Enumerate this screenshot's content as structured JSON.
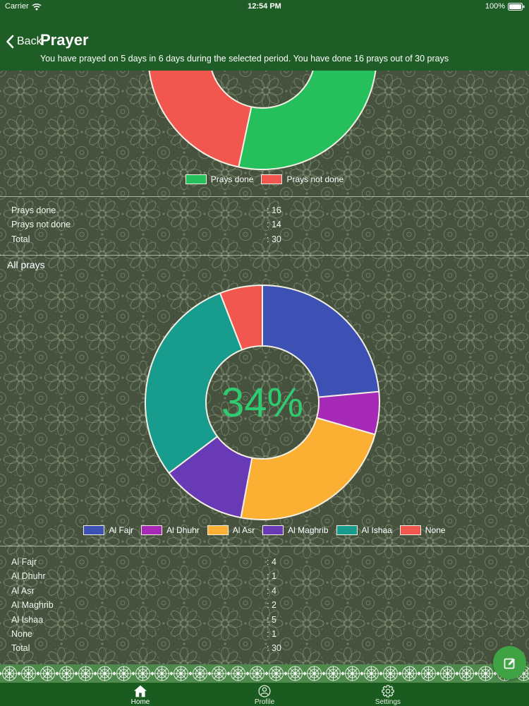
{
  "status_bar": {
    "carrier": "Carrier",
    "time": "12:54 PM",
    "battery": "100%"
  },
  "nav": {
    "back_label": "Back",
    "title": "Prayer",
    "subtitle": "You have prayed on 5 days in 6 days during the selected period. You have done 16 prays out of 30 prays"
  },
  "colors": {
    "header_green": "#1e5d25",
    "tabbar_green": "#1a5b20",
    "band_green": "#4e8a4c",
    "fab_green": "#3fa344",
    "slice_stroke": "#f3efe2",
    "center_label_green": "#2fcb70"
  },
  "chart_data": [
    {
      "type": "pie",
      "name": "prays-summary-donut",
      "donut": true,
      "start": "top",
      "direction": "clockwise",
      "categories": [
        "Prays done",
        "Prays not done"
      ],
      "values": [
        16,
        14
      ],
      "colors": [
        "#25c05c",
        "#f1574f"
      ],
      "legend_position": "bottom"
    },
    {
      "type": "pie",
      "name": "all-prays-donut",
      "donut": true,
      "start": "top",
      "direction": "clockwise",
      "categories": [
        "Al Fajr",
        "Al Dhuhr",
        "Al Asr",
        "Al Maghrib",
        "Al Ishaa",
        "None"
      ],
      "values": [
        4,
        1,
        4,
        2,
        5,
        1
      ],
      "colors": [
        "#3d50b4",
        "#a629b7",
        "#fbb034",
        "#693ab6",
        "#179c8e",
        "#f1574f"
      ],
      "center_label": "34%",
      "legend_position": "bottom"
    }
  ],
  "summary_table": {
    "rows": [
      {
        "label": "Prays done",
        "value": ": 16"
      },
      {
        "label": "Prays not done",
        "value": ": 14"
      },
      {
        "label": "Total",
        "value": ": 30"
      }
    ]
  },
  "section_title": "All prays",
  "detail_table": {
    "rows": [
      {
        "label": "Al Fajr",
        "value": ": 4"
      },
      {
        "label": "Al Dhuhr",
        "value": ": 1"
      },
      {
        "label": "Al Asr",
        "value": ": 4"
      },
      {
        "label": "Al Maghrib",
        "value": ": 2"
      },
      {
        "label": "Al Ishaa",
        "value": ": 5"
      },
      {
        "label": "None",
        "value": ": 1"
      },
      {
        "label": "Total",
        "value": ": 30"
      }
    ]
  },
  "tab_bar": {
    "tabs": [
      {
        "label": "Home",
        "active": true
      },
      {
        "label": "Profile",
        "active": false
      },
      {
        "label": "Settings",
        "active": false
      }
    ]
  },
  "fab": {
    "icon": "compose-icon"
  }
}
